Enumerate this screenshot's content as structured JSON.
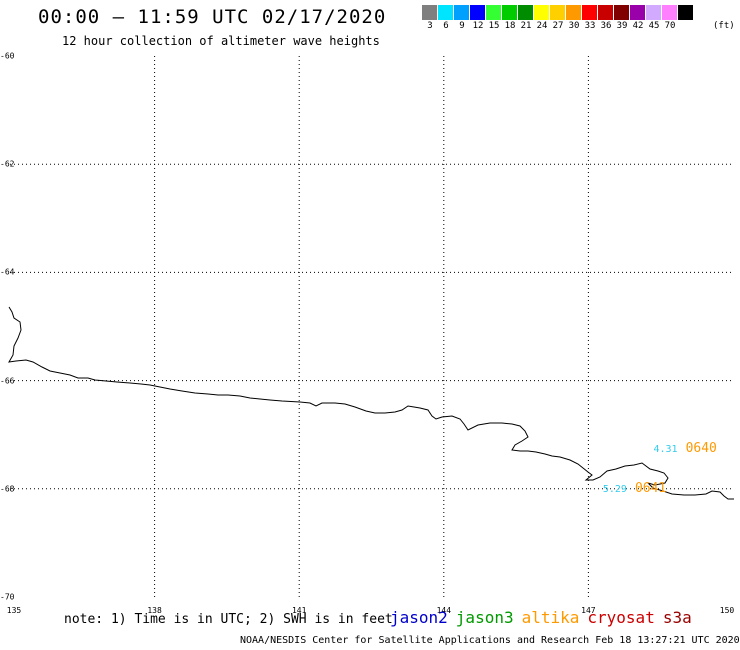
{
  "header": {
    "title": "00:00 – 11:59 UTC 02/17/2020",
    "subtitle": "12 hour collection of altimeter wave heights"
  },
  "legend": {
    "unit": "(ft)",
    "bins": [
      {
        "label": "3",
        "color": "#7f7f7f"
      },
      {
        "label": "6",
        "color": "#00e5ff"
      },
      {
        "label": "9",
        "color": "#00a0ff"
      },
      {
        "label": "12",
        "color": "#0000ff"
      },
      {
        "label": "15",
        "color": "#33ff33"
      },
      {
        "label": "18",
        "color": "#00cc00"
      },
      {
        "label": "21",
        "color": "#008c00"
      },
      {
        "label": "24",
        "color": "#ffff00"
      },
      {
        "label": "27",
        "color": "#ffd000"
      },
      {
        "label": "30",
        "color": "#ff9900"
      },
      {
        "label": "33",
        "color": "#ff0000"
      },
      {
        "label": "36",
        "color": "#c80000"
      },
      {
        "label": "39",
        "color": "#800000"
      },
      {
        "label": "42",
        "color": "#9900aa"
      },
      {
        "label": "45",
        "color": "#d2aaff"
      },
      {
        "label": "70",
        "color": "#ff80ff"
      },
      {
        "label": "",
        "color": "#000000"
      }
    ]
  },
  "map": {
    "lon_range": [
      135,
      150
    ],
    "lat_range": [
      -70,
      -60
    ],
    "lat_ticks": [
      "-60",
      "-62",
      "-64",
      "-66",
      "-68",
      "-70"
    ],
    "lon_ticks": [
      "135",
      "138",
      "141",
      "144",
      "147",
      "150"
    ],
    "observations": [
      {
        "swh": "4.31",
        "time": "0640",
        "lon": 148.35,
        "lat": -67.12,
        "swh_color": "#33ccee",
        "time_color": "#ff9900"
      },
      {
        "swh": "5.29",
        "time": "0641",
        "lon": 147.3,
        "lat": -67.85,
        "swh_color": "#33ccee",
        "time_color": "#ff9900"
      }
    ]
  },
  "footer": {
    "note": "note: 1) Time is in UTC; 2) SWH is in feet",
    "satellites": [
      {
        "name": "jason2",
        "color": "#0000cc"
      },
      {
        "name": "jason3",
        "color": "#009900"
      },
      {
        "name": "altika",
        "color": "#ff9900"
      },
      {
        "name": "cryosat",
        "color": "#cc0000"
      },
      {
        "name": "s3a",
        "color": "#990000"
      }
    ],
    "credit": "NOAA/NESDIS Center for Satellite Applications and Research    Feb 18 13:27:21 UTC 2020"
  }
}
